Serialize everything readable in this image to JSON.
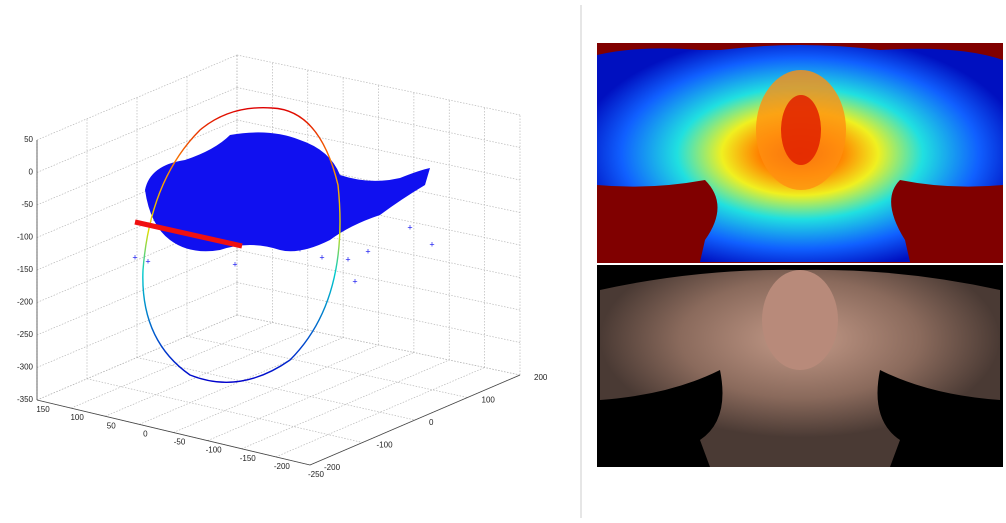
{
  "plot3d": {
    "z_ticks": [
      50,
      0,
      -50,
      -100,
      -150,
      -200,
      -250,
      -300,
      -350
    ],
    "x_ticks": [
      150,
      100,
      50,
      0,
      -50,
      -100,
      -150,
      -200,
      -250
    ],
    "y_ticks": [
      200,
      100,
      0,
      -100,
      -200
    ]
  }
}
